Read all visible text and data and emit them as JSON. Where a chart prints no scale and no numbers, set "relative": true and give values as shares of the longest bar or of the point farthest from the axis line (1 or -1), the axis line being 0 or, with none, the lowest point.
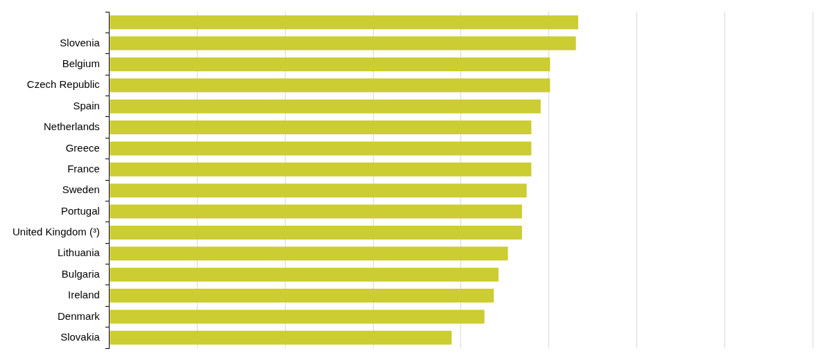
{
  "chart_data": {
    "type": "bar",
    "orientation": "horizontal",
    "relative": true,
    "grid": "x",
    "categories": [
      null,
      "Slovenia",
      "Belgium",
      "Czech Republic",
      "Spain",
      "Netherlands",
      "Greece",
      "France",
      "Sweden",
      "Portugal",
      "United Kingdom (³)",
      "Lithuania",
      "Bulgaria",
      "Ireland",
      "Denmark",
      "Slovakia"
    ],
    "values": [
      1,
      0.995,
      0.94,
      0.94,
      0.92,
      0.9,
      0.9,
      0.9,
      0.89,
      0.88,
      0.88,
      0.85,
      0.83,
      0.82,
      0.8,
      0.73
    ],
    "color": "#cccc33"
  }
}
